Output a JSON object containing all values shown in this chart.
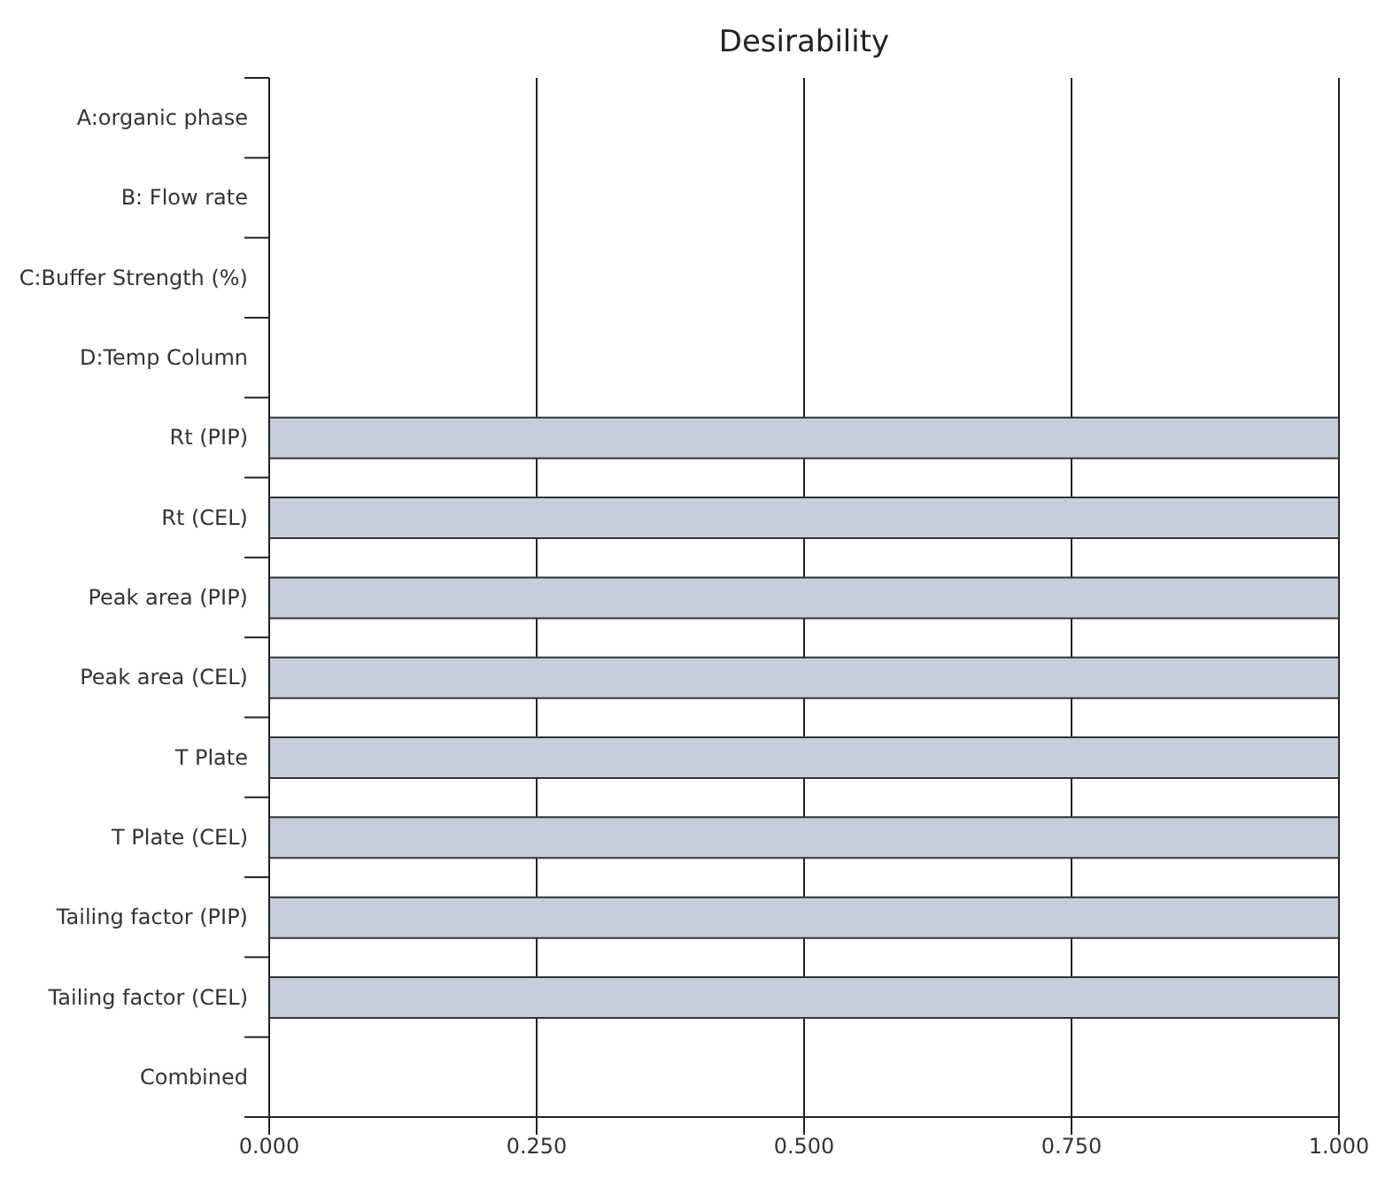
{
  "chart_data": {
    "type": "bar",
    "orientation": "horizontal",
    "title": "Desirability",
    "categories": [
      "A:organic phase",
      "B: Flow rate",
      "C:Buffer Strength (%)",
      "D:Temp Column",
      "Rt (PIP)",
      "Rt (CEL)",
      "Peak area (PIP)",
      "Peak area (CEL)",
      "T Plate",
      "T Plate (CEL)",
      "Tailing factor (PIP)",
      "Tailing factor (CEL)",
      "Combined"
    ],
    "values": [
      0,
      0,
      0,
      0,
      1,
      1,
      1,
      1,
      1,
      1,
      1,
      1,
      0
    ],
    "color": "#c8cfdc",
    "xlim": [
      0,
      1
    ],
    "xticks": [
      {
        "value": 0,
        "label": "0.000"
      },
      {
        "value": 0.25,
        "label": "0.250"
      },
      {
        "value": 0.5,
        "label": "0.500"
      },
      {
        "value": 0.75,
        "label": "0.750"
      },
      {
        "value": 1,
        "label": "1.000"
      }
    ],
    "grid": "x"
  }
}
